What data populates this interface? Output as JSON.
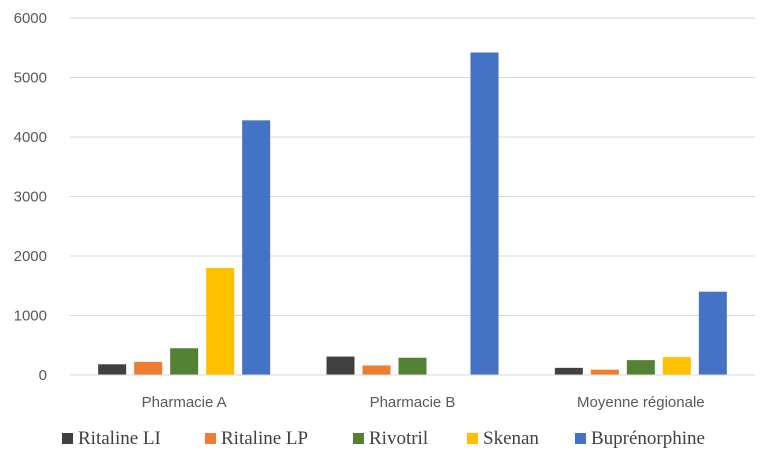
{
  "chart_data": {
    "type": "bar",
    "title": "",
    "xlabel": "",
    "ylabel": "",
    "ylim": [
      0,
      6000
    ],
    "yticks": [
      0,
      1000,
      2000,
      3000,
      4000,
      5000,
      6000
    ],
    "grid": true,
    "legend_position": "bottom",
    "categories": [
      "Pharmacie A",
      "Pharmacie B",
      "Moyenne régionale"
    ],
    "series": [
      {
        "name": "Ritaline LI",
        "color": "#404040",
        "values": [
          180,
          310,
          120
        ]
      },
      {
        "name": "Ritaline LP",
        "color": "#ed7d31",
        "values": [
          220,
          160,
          90
        ]
      },
      {
        "name": "Rivotril",
        "color": "#548235",
        "values": [
          450,
          290,
          250
        ]
      },
      {
        "name": "Skenan",
        "color": "#ffc000",
        "values": [
          1800,
          0,
          300
        ]
      },
      {
        "name": "Buprénorphine",
        "color": "#4472c4",
        "values": [
          4280,
          5420,
          1400
        ]
      }
    ]
  }
}
